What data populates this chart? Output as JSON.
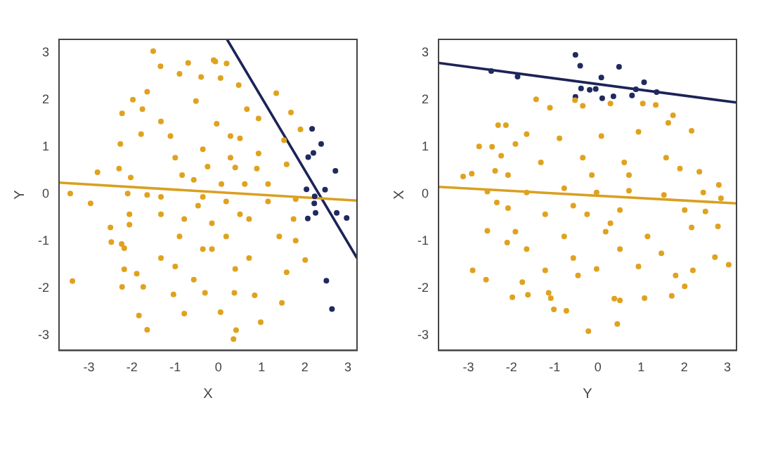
{
  "chart_data": [
    {
      "type": "scatter",
      "xlabel": "X",
      "ylabel": "Y",
      "xlim": [
        -3.69,
        3.21
      ],
      "ylim": [
        -3.32,
        3.28
      ],
      "xticks": [
        -3,
        -2,
        -1,
        0,
        1,
        2,
        3
      ],
      "yticks": [
        -3,
        -2,
        -1,
        0,
        1,
        2,
        3
      ],
      "grid": false,
      "legend": false,
      "marker": "circle",
      "series": [
        {
          "color": "#e0a21e",
          "x": [
            -1.51,
            -0.11,
            -0.07,
            0.19,
            -0.7,
            -1.34,
            -0.9,
            -0.4,
            0.05,
            0.47,
            1.34,
            -1.98,
            -1.65,
            -2.23,
            -1.76,
            -0.52,
            0.66,
            1.68,
            -1.33,
            -0.04,
            0.93,
            -2.27,
            -1.79,
            -1.11,
            0.5,
            1.52,
            1.9,
            -2.8,
            -2.3,
            -2.03,
            -0.84,
            0.39,
            0.89,
            1.58,
            -3.43,
            -2.96,
            -2.1,
            -1.65,
            -0.36,
            0.18,
            1.15,
            1.79,
            -2.06,
            -1.33,
            -0.15,
            0.71,
            1.74,
            -2.5,
            -2.06,
            -0.9,
            0.18,
            1.41,
            1.79,
            -2.48,
            -2.24,
            -2.18,
            -1.33,
            -0.36,
            0.71,
            2.01,
            -2.18,
            -1.89,
            -1.0,
            -0.57,
            0.39,
            1.58,
            -3.38,
            -2.23,
            -1.74,
            -1.04,
            -0.31,
            0.37,
            0.84,
            1.47,
            -1.84,
            -0.79,
            0.05,
            0.98,
            -1.65,
            0.41,
            0.35,
            -0.57,
            -1.0,
            -0.36,
            0.28,
            0.07,
            -0.47,
            0.5,
            -0.79,
            -0.15,
            1.15,
            -1.33,
            0.93,
            0.28,
            -0.25,
            0.61
          ],
          "values": [
            3.03,
            2.84,
            2.81,
            2.77,
            2.78,
            2.71,
            2.55,
            2.48,
            2.46,
            2.31,
            2.14,
            2.0,
            2.17,
            1.71,
            1.8,
            1.97,
            1.8,
            1.73,
            1.54,
            1.49,
            1.6,
            1.06,
            1.27,
            1.23,
            1.18,
            1.14,
            1.37,
            0.46,
            0.54,
            0.35,
            0.4,
            0.56,
            0.54,
            0.63,
            0.01,
            -0.2,
            0.01,
            -0.02,
            -0.06,
            -0.16,
            -0.16,
            -0.11,
            -0.43,
            -0.43,
            -0.62,
            -0.53,
            -0.53,
            -0.71,
            -0.65,
            -0.9,
            -0.9,
            -0.9,
            -0.99,
            -1.02,
            -1.06,
            -1.15,
            -1.36,
            -1.17,
            -1.36,
            -1.4,
            -1.6,
            -1.69,
            -1.54,
            -1.82,
            -1.59,
            -1.66,
            -1.85,
            -1.97,
            -1.97,
            -2.13,
            -2.1,
            -2.1,
            -2.15,
            -2.31,
            -2.58,
            -2.54,
            -2.51,
            -2.72,
            -2.88,
            -2.89,
            -3.08,
            0.3,
            0.77,
            0.95,
            1.23,
            0.21,
            -0.25,
            -0.43,
            -0.53,
            -1.17,
            0.21,
            -0.06,
            0.86,
            0.77,
            0.58,
            0.21
          ]
        },
        {
          "color": "#1f2a5e",
          "x": [
            2.17,
            2.38,
            2.2,
            2.08,
            2.71,
            2.04,
            2.47,
            2.23,
            2.22,
            2.25,
            2.07,
            2.74,
            2.97,
            2.5,
            2.63
          ],
          "values": [
            1.38,
            1.06,
            0.87,
            0.78,
            0.49,
            0.1,
            0.09,
            -0.05,
            -0.2,
            -0.4,
            -0.52,
            -0.4,
            -0.51,
            -1.84,
            -2.44
          ]
        },
        {
          "type": "line",
          "marker": "none",
          "color": "#d9a020",
          "x": [
            -3.69,
            3.21
          ],
          "values": [
            0.24,
            -0.14
          ]
        },
        {
          "type": "line",
          "marker": "none",
          "color": "#1c2357",
          "x": [
            0.2,
            3.21
          ],
          "values": [
            3.28,
            -1.36
          ]
        }
      ]
    },
    {
      "type": "scatter",
      "xlabel": "Y",
      "ylabel": "X",
      "xlim": [
        -3.69,
        3.21
      ],
      "ylim": [
        -3.32,
        3.28
      ],
      "xticks": [
        -3,
        -2,
        -1,
        0,
        1,
        2,
        3
      ],
      "yticks": [
        -3,
        -2,
        -1,
        0,
        1,
        2,
        3
      ],
      "grid": false,
      "legend": false,
      "marker": "circle",
      "series": [
        {
          "color": "#e0a21e",
          "x": [
            -0.53,
            -1.43,
            -1.11,
            -0.35,
            0.29,
            1.04,
            1.34,
            1.63,
            1.74,
            -2.31,
            -2.13,
            -1.65,
            2.17,
            -2.75,
            -2.45,
            -1.91,
            -0.89,
            0.08,
            0.94,
            -2.24,
            -2.38,
            -2.08,
            -3.12,
            -2.92,
            -1.32,
            -0.35,
            0.61,
            1.58,
            1.9,
            2.35,
            -2.56,
            -1.65,
            -0.78,
            -0.03,
            0.72,
            1.53,
            2.44,
            2.8,
            2.85,
            -2.34,
            -2.08,
            -1.22,
            -0.25,
            0.51,
            2.01,
            2.49,
            -2.56,
            -1.91,
            -0.78,
            0.18,
            1.15,
            2.17,
            2.78,
            -2.1,
            -1.65,
            -0.57,
            0.51,
            1.47,
            2.71,
            -2.9,
            -2.59,
            -1.75,
            -1.22,
            -0.03,
            0.94,
            1.8,
            2.2,
            3.03,
            -1.98,
            -1.62,
            -1.14,
            -1.09,
            0.38,
            0.51,
            1.08,
            1.71,
            2.01,
            -1.02,
            -0.73,
            0.45,
            -0.22,
            -0.46,
            -0.14,
            -0.57,
            0.29,
            0.72
          ],
          "values": [
            1.99,
            2.01,
            1.83,
            1.87,
            1.92,
            1.92,
            1.89,
            1.51,
            1.67,
            1.46,
            1.46,
            1.27,
            1.34,
            1.01,
            1.0,
            1.06,
            1.18,
            1.23,
            1.32,
            0.81,
            0.49,
            0.4,
            0.37,
            0.43,
            0.67,
            0.77,
            0.67,
            0.77,
            0.54,
            0.47,
            0.05,
            0.03,
            0.12,
            0.03,
            0.07,
            -0.02,
            0.03,
            0.19,
            -0.09,
            -0.18,
            -0.3,
            -0.43,
            -0.43,
            -0.34,
            -0.34,
            -0.37,
            -0.78,
            -0.8,
            -0.9,
            -0.8,
            -0.9,
            -0.71,
            -0.69,
            -1.03,
            -1.17,
            -1.36,
            -1.17,
            -1.26,
            -1.34,
            -1.62,
            -1.82,
            -1.87,
            -1.62,
            -1.59,
            -1.54,
            -1.73,
            -1.62,
            -1.5,
            -2.19,
            -2.14,
            -2.1,
            -2.21,
            -2.22,
            -2.26,
            -2.21,
            -2.16,
            -1.96,
            -2.45,
            -2.48,
            -2.76,
            -2.91,
            -1.73,
            0.4,
            -0.25,
            -0.62,
            0.4
          ]
        },
        {
          "color": "#1f2a5e",
          "x": [
            -0.52,
            -0.41,
            0.49,
            0.08,
            1.07,
            -0.39,
            -0.19,
            -0.05,
            0.88,
            -0.52,
            0.1,
            0.36,
            0.79,
            1.36,
            -2.47,
            -1.86
          ],
          "values": [
            2.95,
            2.72,
            2.7,
            2.47,
            2.37,
            2.24,
            2.21,
            2.23,
            2.22,
            2.06,
            2.03,
            2.07,
            2.09,
            2.16,
            2.61,
            2.49
          ]
        },
        {
          "type": "line",
          "marker": "none",
          "color": "#d9a020",
          "x": [
            -3.69,
            3.21
          ],
          "values": [
            0.15,
            -0.2
          ]
        },
        {
          "type": "line",
          "marker": "none",
          "color": "#1c2357",
          "x": [
            -3.69,
            3.21
          ],
          "values": [
            2.78,
            1.94
          ]
        }
      ]
    }
  ]
}
